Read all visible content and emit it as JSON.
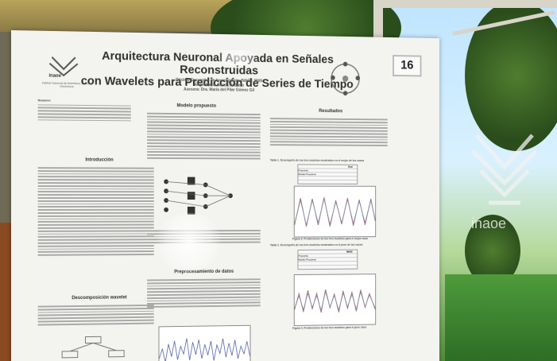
{
  "poster": {
    "title_line1": "Arquitectura Neuronal Apoyada en Señales Reconstruidas",
    "title_line2": "con Wavelets para Predicción de Series de Tiempo",
    "event": "Décimo Encuentro de Investigación INAOE 2009",
    "author": "Ángel Mario García Pedrero",
    "advisor": "Asesora: Dra. María del Pilar Gómez Gil",
    "number": "16",
    "logo_text": "inaoe",
    "institute": "Instituto Nacional de Astrofísica, Óptica y Electrónica"
  },
  "sections": {
    "resumen": "Resumen",
    "introduccion": "Introducción",
    "wavelet": "Descomposición wavelet",
    "modelo": "Modelo propuesto",
    "preproc": "Preprocesamiento de datos",
    "resultados": "Resultados"
  },
  "captions": {
    "figure3": "Figura 3. Predicciones de los tres modelos para el mejor caso",
    "figure4": "Figura 4. Predicciones de los tres modelos para el peor caso",
    "table1": "Tabla 1. Desempeño de los tres modelos mostrados en el mejor de los casos",
    "table2": "Tabla 2. Desempeño de los tres modelos mostrados en el peor de los casos"
  },
  "table_labels": [
    "Real",
    "NMSE",
    "Propuesto",
    "Modelo Propuesto"
  ],
  "colors": {
    "poster_bg": "#f3f3ef",
    "sky": "#bfe4ff",
    "grass": "#3f8a2f",
    "wall": "#b9a45a"
  },
  "icons": [
    "inaoe-logo-icon",
    "neural-diagram-icon",
    "network-graph-icon",
    "inaoe-glass-logo-icon"
  ]
}
